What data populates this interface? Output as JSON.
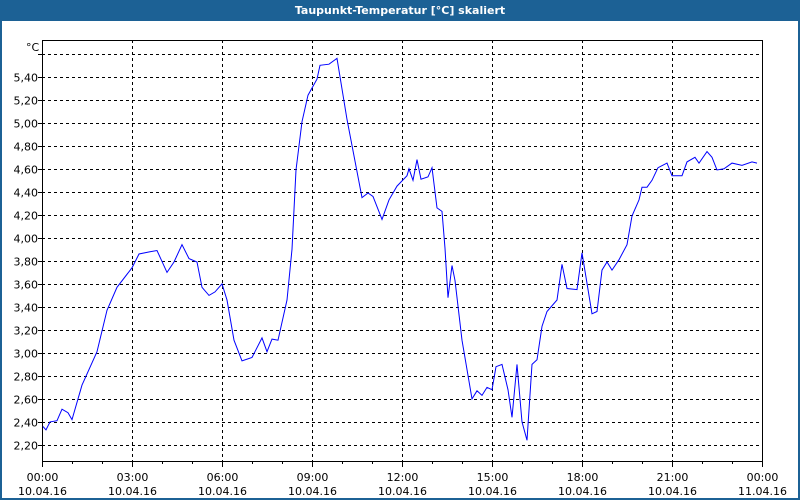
{
  "window": {
    "title": "Taupunkt-Temperatur [°C] skaliert"
  },
  "chart_data": {
    "type": "line",
    "title": "Taupunkt-Temperatur [°C] skaliert",
    "ylabel": "°C",
    "xlabel": "",
    "ylim": [
      2.06,
      5.72
    ],
    "yticks": [
      2.2,
      2.4,
      2.6,
      2.8,
      3.0,
      3.2,
      3.4,
      3.6,
      3.8,
      4.0,
      4.2,
      4.4,
      4.6,
      4.8,
      5.0,
      5.2,
      5.4,
      5.6
    ],
    "ytick_labels": [
      "2,20",
      "2,40",
      "2,60",
      "2,80",
      "3,00",
      "3,20",
      "3,40",
      "3,60",
      "3,80",
      "4,00",
      "4,20",
      "4,40",
      "4,60",
      "4,80",
      "5,00",
      "5,20",
      "5,40",
      ""
    ],
    "xlim": [
      "10.04.16 00:00",
      "11.04.16 00:00"
    ],
    "xtick_labels": [
      {
        "time": "00:00",
        "date": "10.04.16"
      },
      {
        "time": "03:00",
        "date": "10.04.16"
      },
      {
        "time": "06:00",
        "date": "10.04.16"
      },
      {
        "time": "09:00",
        "date": "10.04.16"
      },
      {
        "time": "12:00",
        "date": "10.04.16"
      },
      {
        "time": "15:00",
        "date": "10.04.16"
      },
      {
        "time": "18:00",
        "date": "10.04.16"
      },
      {
        "time": "21:00",
        "date": "10.04.16"
      },
      {
        "time": "00:00",
        "date": "11.04.16"
      }
    ],
    "grid": true,
    "line_color": "#0000ff",
    "series": [
      {
        "x": [
          "00:02",
          "00:08",
          "00:16",
          "00:30",
          "00:40",
          "00:52",
          "01:00",
          "01:20",
          "01:50",
          "02:10",
          "02:30",
          "03:00",
          "03:14",
          "03:36",
          "03:50",
          "04:10",
          "04:24",
          "04:40",
          "04:54",
          "05:10",
          "05:20",
          "05:34",
          "05:46",
          "06:00",
          "06:10",
          "06:24",
          "06:40",
          "07:00",
          "07:20",
          "07:30",
          "07:40",
          "07:52",
          "08:10",
          "08:20",
          "08:28",
          "08:40",
          "08:52",
          "09:10",
          "09:16",
          "09:34",
          "09:50",
          "10:10",
          "10:40",
          "10:52",
          "11:02",
          "11:20",
          "11:34",
          "11:50",
          "12:10",
          "12:14",
          "12:22",
          "12:30",
          "12:38",
          "12:52",
          "13:00",
          "13:10",
          "13:20",
          "13:26",
          "13:32",
          "13:40",
          "13:46",
          "14:00",
          "14:20",
          "14:30",
          "14:40",
          "14:50",
          "15:00",
          "15:08",
          "15:20",
          "15:32",
          "15:40",
          "15:50",
          "16:00",
          "16:10",
          "16:20",
          "16:30",
          "16:40",
          "16:50",
          "17:10",
          "17:20",
          "17:30",
          "17:50",
          "18:00",
          "18:20",
          "18:30",
          "18:40",
          "18:50",
          "19:00",
          "19:14",
          "19:30",
          "19:40",
          "19:54",
          "20:00",
          "20:10",
          "20:20",
          "20:32",
          "20:50",
          "21:00",
          "21:20",
          "21:30",
          "21:46",
          "21:54",
          "22:10",
          "22:20",
          "22:30",
          "22:44",
          "23:00",
          "23:20",
          "23:40",
          "23:50"
        ],
        "y": [
          2.36,
          2.33,
          2.4,
          2.41,
          2.51,
          2.48,
          2.42,
          2.72,
          3.01,
          3.37,
          3.57,
          3.74,
          3.86,
          3.88,
          3.89,
          3.7,
          3.79,
          3.94,
          3.82,
          3.79,
          3.57,
          3.5,
          3.53,
          3.6,
          3.46,
          3.11,
          2.93,
          2.96,
          3.13,
          3.01,
          3.12,
          3.11,
          3.46,
          3.9,
          4.59,
          5.01,
          5.24,
          5.38,
          5.5,
          5.51,
          5.56,
          5.03,
          4.35,
          4.39,
          4.36,
          4.16,
          4.33,
          4.45,
          4.54,
          4.6,
          4.5,
          4.68,
          4.51,
          4.53,
          4.61,
          4.26,
          4.23,
          3.91,
          3.48,
          3.76,
          3.63,
          3.11,
          2.6,
          2.67,
          2.63,
          2.7,
          2.68,
          2.88,
          2.9,
          2.68,
          2.44,
          2.9,
          2.4,
          2.24,
          2.9,
          2.94,
          3.23,
          3.36,
          3.46,
          3.77,
          3.56,
          3.55,
          3.87,
          3.34,
          3.36,
          3.72,
          3.79,
          3.72,
          3.81,
          3.94,
          4.19,
          4.33,
          4.44,
          4.44,
          4.5,
          4.61,
          4.65,
          4.54,
          4.54,
          4.66,
          4.7,
          4.65,
          4.75,
          4.7,
          4.59,
          4.6,
          4.65,
          4.63,
          4.66,
          4.65
        ]
      }
    ]
  }
}
